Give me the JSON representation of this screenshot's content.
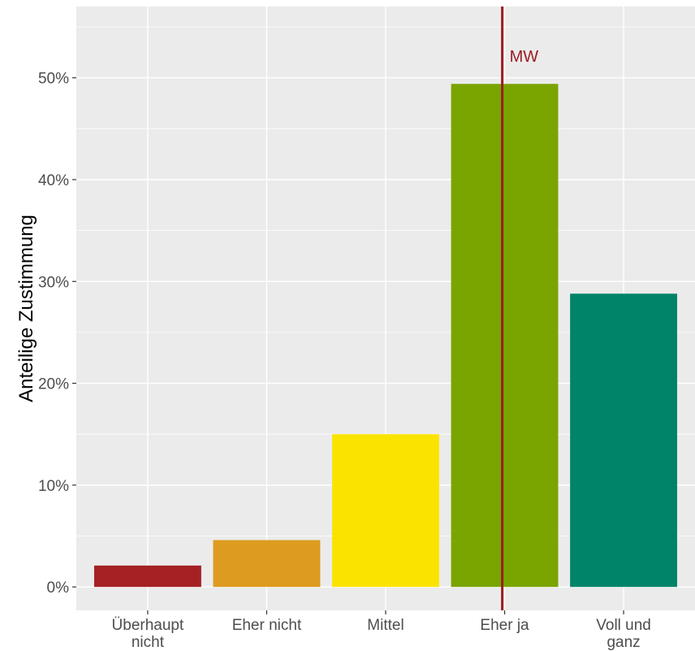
{
  "chart_data": {
    "type": "bar",
    "categories": [
      [
        "Überhaupt",
        "nicht"
      ],
      [
        "Eher nicht"
      ],
      [
        "Mittel"
      ],
      [
        "Eher ja"
      ],
      [
        "Voll und",
        "ganz"
      ]
    ],
    "values": [
      2.1,
      4.6,
      15.0,
      49.4,
      28.8
    ],
    "bar_colors": [
      "#a52124",
      "#dd9b1f",
      "#fbe300",
      "#7aa400",
      "#008469"
    ],
    "ylabel": "Anteilige Zustimmung",
    "xlabel": "",
    "ylim": [
      -2.3,
      57
    ],
    "y_ticks": [
      0,
      10,
      20,
      30,
      40,
      50
    ],
    "y_tick_labels": [
      "0%",
      "10%",
      "20%",
      "30%",
      "40%",
      "50%"
    ],
    "grid": true,
    "panel_background": "#ebebeb",
    "mean_line": {
      "label": "MW",
      "x_position": 3.98,
      "color": "#9b1c22"
    }
  }
}
